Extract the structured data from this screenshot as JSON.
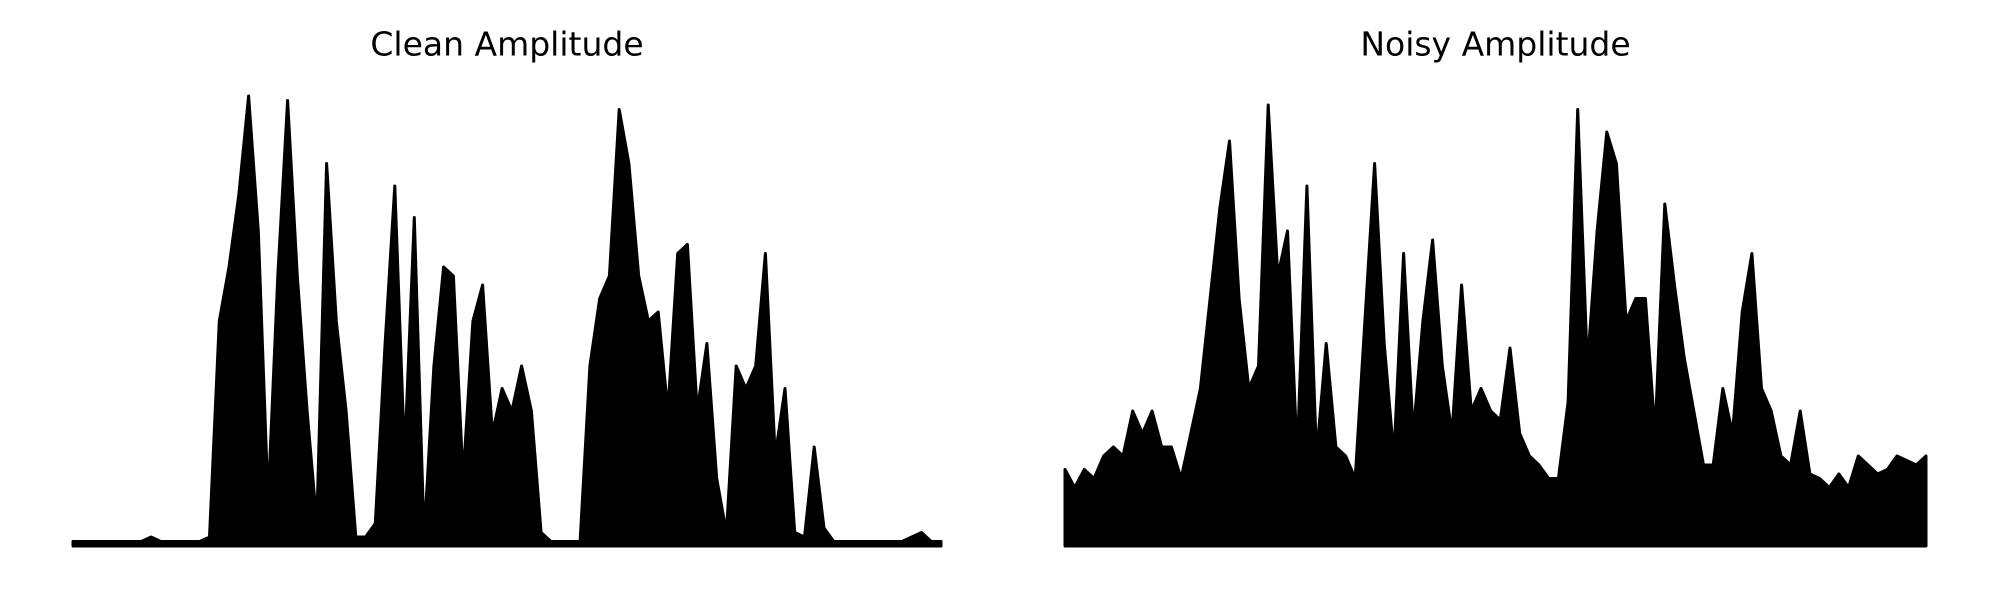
{
  "chart_data": [
    {
      "type": "area",
      "title": "Clean Amplitude",
      "color": "#000000",
      "ylim": [
        0,
        1
      ],
      "values": [
        0.01,
        0.01,
        0.01,
        0.01,
        0.01,
        0.01,
        0.01,
        0.01,
        0.02,
        0.01,
        0.01,
        0.01,
        0.01,
        0.01,
        0.02,
        0.5,
        0.62,
        0.78,
        1.0,
        0.7,
        0.1,
        0.6,
        0.99,
        0.6,
        0.3,
        0.05,
        0.85,
        0.5,
        0.3,
        0.02,
        0.02,
        0.05,
        0.45,
        0.8,
        0.2,
        0.73,
        0.02,
        0.4,
        0.62,
        0.6,
        0.15,
        0.5,
        0.58,
        0.25,
        0.35,
        0.3,
        0.4,
        0.3,
        0.03,
        0.01,
        0.01,
        0.01,
        0.01,
        0.4,
        0.55,
        0.6,
        0.97,
        0.85,
        0.6,
        0.5,
        0.52,
        0.3,
        0.65,
        0.67,
        0.3,
        0.45,
        0.15,
        0.03,
        0.4,
        0.35,
        0.4,
        0.65,
        0.2,
        0.35,
        0.03,
        0.02,
        0.22,
        0.04,
        0.01,
        0.01,
        0.01,
        0.01,
        0.01,
        0.01,
        0.01,
        0.01,
        0.02,
        0.03,
        0.01,
        0.01
      ]
    },
    {
      "type": "area",
      "title": "Noisy Amplitude",
      "color": "#000000",
      "ylim": [
        0,
        1
      ],
      "values": [
        0.17,
        0.13,
        0.17,
        0.15,
        0.2,
        0.22,
        0.2,
        0.3,
        0.25,
        0.3,
        0.22,
        0.22,
        0.15,
        0.25,
        0.35,
        0.55,
        0.75,
        0.9,
        0.55,
        0.35,
        0.4,
        0.98,
        0.6,
        0.7,
        0.2,
        0.8,
        0.2,
        0.45,
        0.22,
        0.2,
        0.15,
        0.5,
        0.85,
        0.45,
        0.2,
        0.65,
        0.25,
        0.5,
        0.68,
        0.4,
        0.25,
        0.58,
        0.3,
        0.35,
        0.3,
        0.28,
        0.44,
        0.25,
        0.2,
        0.18,
        0.15,
        0.15,
        0.32,
        0.97,
        0.4,
        0.7,
        0.92,
        0.85,
        0.5,
        0.55,
        0.55,
        0.25,
        0.76,
        0.58,
        0.42,
        0.3,
        0.18,
        0.18,
        0.35,
        0.25,
        0.52,
        0.65,
        0.35,
        0.3,
        0.2,
        0.18,
        0.3,
        0.16,
        0.15,
        0.13,
        0.16,
        0.13,
        0.2,
        0.18,
        0.16,
        0.17,
        0.2,
        0.19,
        0.18,
        0.2
      ]
    }
  ]
}
